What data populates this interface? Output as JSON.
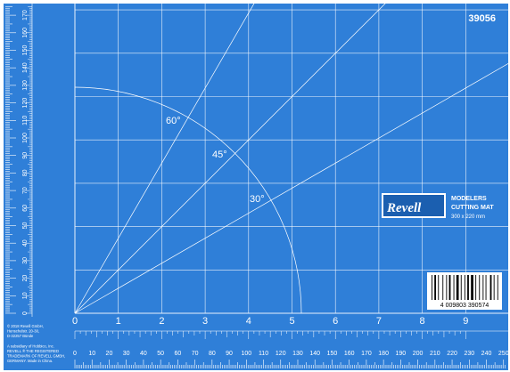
{
  "product_number": "39056",
  "brand": "Revell",
  "title_line1": "MODELERS",
  "title_line2": "CUTTING MAT",
  "size_text": "300 x 220 mm",
  "barcode_text": "4 009803 390574",
  "angles": [
    "60°",
    "45°",
    "30°"
  ],
  "inch_labels": [
    "0",
    "1",
    "2",
    "3",
    "4",
    "5",
    "6",
    "7",
    "8",
    "9"
  ],
  "mm_labels_bottom": [
    "0",
    "10",
    "20",
    "30",
    "40",
    "50",
    "60",
    "70",
    "80",
    "90",
    "100",
    "110",
    "120",
    "130",
    "140",
    "150",
    "160",
    "170",
    "180",
    "190",
    "200",
    "210",
    "220",
    "230",
    "240",
    "250"
  ],
  "mm_labels_left": [
    "0",
    "10",
    "20",
    "30",
    "40",
    "50",
    "60",
    "70",
    "80",
    "90",
    "100",
    "110",
    "120",
    "130",
    "140",
    "150",
    "160",
    "170"
  ],
  "copyright_text": [
    "© 2018 Revell GmbH,",
    "Henschelstr. 20-30,",
    "D-32257 Bünde",
    "",
    "A subsidiary of Hobbico, Inc.",
    "REVELL ® THE REGISTERED",
    "TRADEMARK OF REVELL GMBH,",
    "GERMANY. Made in China."
  ],
  "colors": {
    "mat_blue": "#2f7fd8",
    "line_white": "#ffffff",
    "badge_blue": "#1b5fb0"
  }
}
